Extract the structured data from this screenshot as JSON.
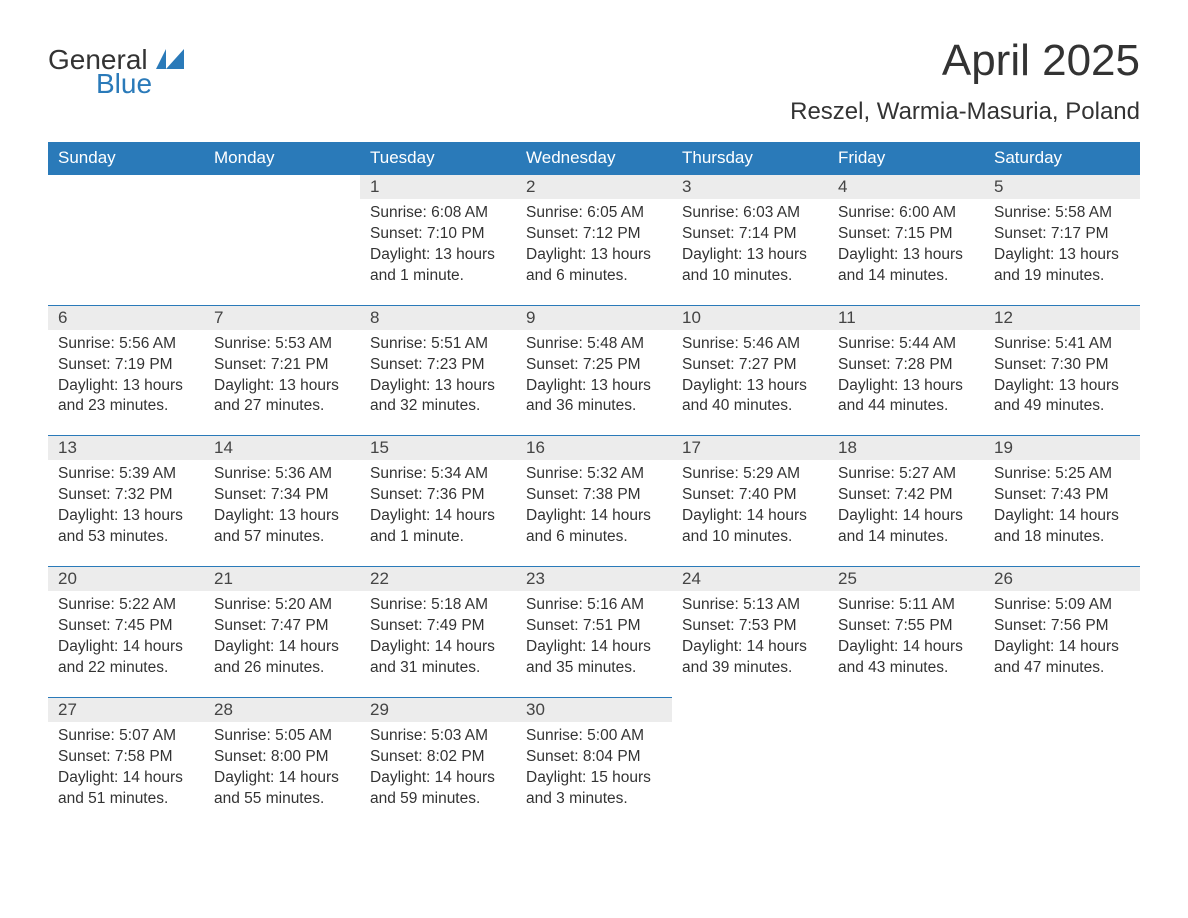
{
  "logo": {
    "word1": "General",
    "word2": "Blue",
    "color_general": "#333333",
    "color_blue": "#2a7ab9"
  },
  "title": "April 2025",
  "location": "Reszel, Warmia-Masuria, Poland",
  "colors": {
    "header_bg": "#2a7ab9",
    "header_text": "#ffffff",
    "daynum_bg": "#ececec",
    "rule": "#2a7ab9",
    "body_text": "#333333",
    "page_bg": "#ffffff"
  },
  "day_headers": [
    "Sunday",
    "Monday",
    "Tuesday",
    "Wednesday",
    "Thursday",
    "Friday",
    "Saturday"
  ],
  "weeks": [
    [
      null,
      null,
      {
        "n": "1",
        "sunrise": "Sunrise: 6:08 AM",
        "sunset": "Sunset: 7:10 PM",
        "day1": "Daylight: 13 hours",
        "day2": "and 1 minute."
      },
      {
        "n": "2",
        "sunrise": "Sunrise: 6:05 AM",
        "sunset": "Sunset: 7:12 PM",
        "day1": "Daylight: 13 hours",
        "day2": "and 6 minutes."
      },
      {
        "n": "3",
        "sunrise": "Sunrise: 6:03 AM",
        "sunset": "Sunset: 7:14 PM",
        "day1": "Daylight: 13 hours",
        "day2": "and 10 minutes."
      },
      {
        "n": "4",
        "sunrise": "Sunrise: 6:00 AM",
        "sunset": "Sunset: 7:15 PM",
        "day1": "Daylight: 13 hours",
        "day2": "and 14 minutes."
      },
      {
        "n": "5",
        "sunrise": "Sunrise: 5:58 AM",
        "sunset": "Sunset: 7:17 PM",
        "day1": "Daylight: 13 hours",
        "day2": "and 19 minutes."
      }
    ],
    [
      {
        "n": "6",
        "sunrise": "Sunrise: 5:56 AM",
        "sunset": "Sunset: 7:19 PM",
        "day1": "Daylight: 13 hours",
        "day2": "and 23 minutes."
      },
      {
        "n": "7",
        "sunrise": "Sunrise: 5:53 AM",
        "sunset": "Sunset: 7:21 PM",
        "day1": "Daylight: 13 hours",
        "day2": "and 27 minutes."
      },
      {
        "n": "8",
        "sunrise": "Sunrise: 5:51 AM",
        "sunset": "Sunset: 7:23 PM",
        "day1": "Daylight: 13 hours",
        "day2": "and 32 minutes."
      },
      {
        "n": "9",
        "sunrise": "Sunrise: 5:48 AM",
        "sunset": "Sunset: 7:25 PM",
        "day1": "Daylight: 13 hours",
        "day2": "and 36 minutes."
      },
      {
        "n": "10",
        "sunrise": "Sunrise: 5:46 AM",
        "sunset": "Sunset: 7:27 PM",
        "day1": "Daylight: 13 hours",
        "day2": "and 40 minutes."
      },
      {
        "n": "11",
        "sunrise": "Sunrise: 5:44 AM",
        "sunset": "Sunset: 7:28 PM",
        "day1": "Daylight: 13 hours",
        "day2": "and 44 minutes."
      },
      {
        "n": "12",
        "sunrise": "Sunrise: 5:41 AM",
        "sunset": "Sunset: 7:30 PM",
        "day1": "Daylight: 13 hours",
        "day2": "and 49 minutes."
      }
    ],
    [
      {
        "n": "13",
        "sunrise": "Sunrise: 5:39 AM",
        "sunset": "Sunset: 7:32 PM",
        "day1": "Daylight: 13 hours",
        "day2": "and 53 minutes."
      },
      {
        "n": "14",
        "sunrise": "Sunrise: 5:36 AM",
        "sunset": "Sunset: 7:34 PM",
        "day1": "Daylight: 13 hours",
        "day2": "and 57 minutes."
      },
      {
        "n": "15",
        "sunrise": "Sunrise: 5:34 AM",
        "sunset": "Sunset: 7:36 PM",
        "day1": "Daylight: 14 hours",
        "day2": "and 1 minute."
      },
      {
        "n": "16",
        "sunrise": "Sunrise: 5:32 AM",
        "sunset": "Sunset: 7:38 PM",
        "day1": "Daylight: 14 hours",
        "day2": "and 6 minutes."
      },
      {
        "n": "17",
        "sunrise": "Sunrise: 5:29 AM",
        "sunset": "Sunset: 7:40 PM",
        "day1": "Daylight: 14 hours",
        "day2": "and 10 minutes."
      },
      {
        "n": "18",
        "sunrise": "Sunrise: 5:27 AM",
        "sunset": "Sunset: 7:42 PM",
        "day1": "Daylight: 14 hours",
        "day2": "and 14 minutes."
      },
      {
        "n": "19",
        "sunrise": "Sunrise: 5:25 AM",
        "sunset": "Sunset: 7:43 PM",
        "day1": "Daylight: 14 hours",
        "day2": "and 18 minutes."
      }
    ],
    [
      {
        "n": "20",
        "sunrise": "Sunrise: 5:22 AM",
        "sunset": "Sunset: 7:45 PM",
        "day1": "Daylight: 14 hours",
        "day2": "and 22 minutes."
      },
      {
        "n": "21",
        "sunrise": "Sunrise: 5:20 AM",
        "sunset": "Sunset: 7:47 PM",
        "day1": "Daylight: 14 hours",
        "day2": "and 26 minutes."
      },
      {
        "n": "22",
        "sunrise": "Sunrise: 5:18 AM",
        "sunset": "Sunset: 7:49 PM",
        "day1": "Daylight: 14 hours",
        "day2": "and 31 minutes."
      },
      {
        "n": "23",
        "sunrise": "Sunrise: 5:16 AM",
        "sunset": "Sunset: 7:51 PM",
        "day1": "Daylight: 14 hours",
        "day2": "and 35 minutes."
      },
      {
        "n": "24",
        "sunrise": "Sunrise: 5:13 AM",
        "sunset": "Sunset: 7:53 PM",
        "day1": "Daylight: 14 hours",
        "day2": "and 39 minutes."
      },
      {
        "n": "25",
        "sunrise": "Sunrise: 5:11 AM",
        "sunset": "Sunset: 7:55 PM",
        "day1": "Daylight: 14 hours",
        "day2": "and 43 minutes."
      },
      {
        "n": "26",
        "sunrise": "Sunrise: 5:09 AM",
        "sunset": "Sunset: 7:56 PM",
        "day1": "Daylight: 14 hours",
        "day2": "and 47 minutes."
      }
    ],
    [
      {
        "n": "27",
        "sunrise": "Sunrise: 5:07 AM",
        "sunset": "Sunset: 7:58 PM",
        "day1": "Daylight: 14 hours",
        "day2": "and 51 minutes."
      },
      {
        "n": "28",
        "sunrise": "Sunrise: 5:05 AM",
        "sunset": "Sunset: 8:00 PM",
        "day1": "Daylight: 14 hours",
        "day2": "and 55 minutes."
      },
      {
        "n": "29",
        "sunrise": "Sunrise: 5:03 AM",
        "sunset": "Sunset: 8:02 PM",
        "day1": "Daylight: 14 hours",
        "day2": "and 59 minutes."
      },
      {
        "n": "30",
        "sunrise": "Sunrise: 5:00 AM",
        "sunset": "Sunset: 8:04 PM",
        "day1": "Daylight: 15 hours",
        "day2": "and 3 minutes."
      },
      null,
      null,
      null
    ]
  ]
}
